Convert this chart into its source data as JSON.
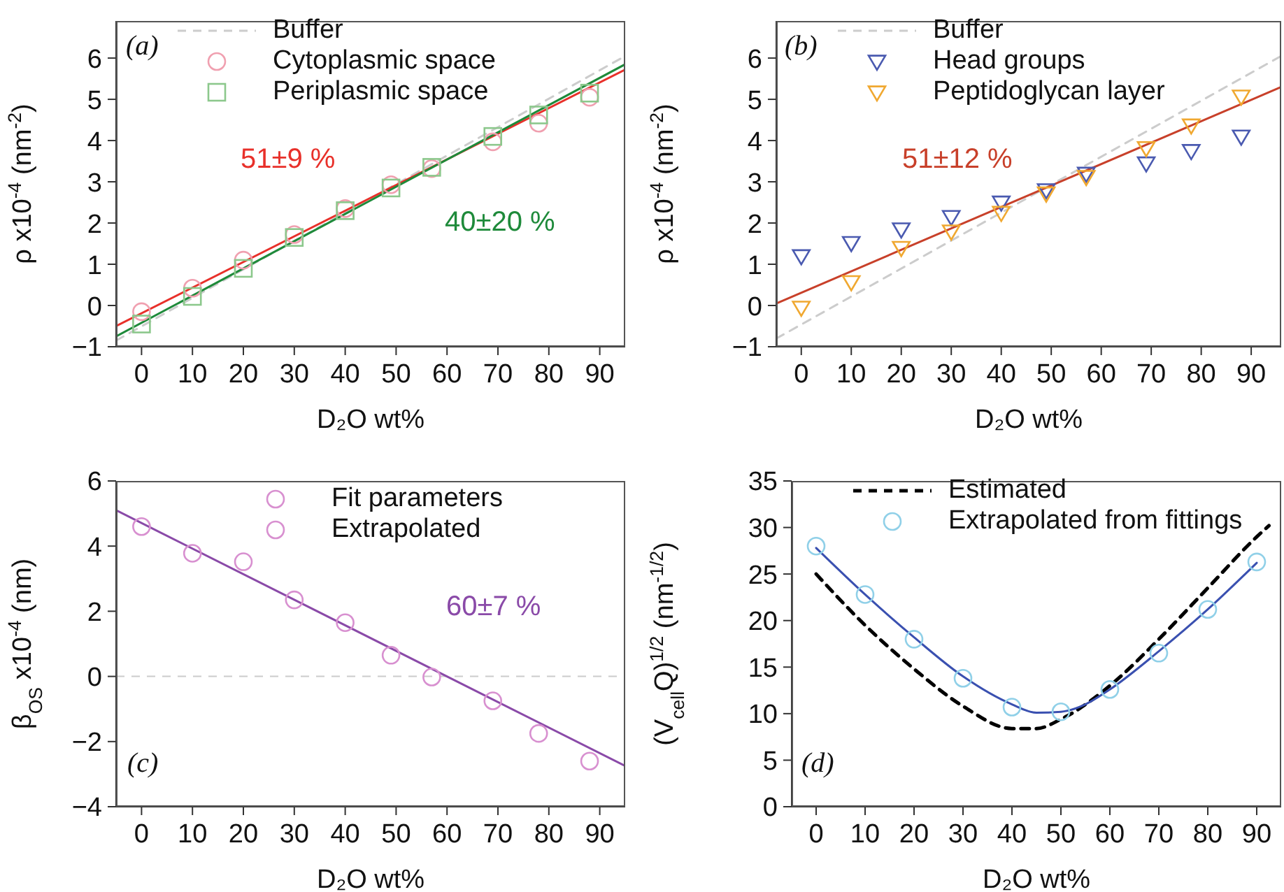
{
  "chart_data": [
    {
      "type": "scatter",
      "xlabel": "D₂O wt%",
      "ylabel": "ρ x10$^{-4}$ (nm$^{-2}$)",
      "xlim": [
        -5,
        95
      ],
      "ylim": [
        -1,
        6.9
      ],
      "xticks": [
        0,
        10,
        20,
        30,
        40,
        50,
        60,
        70,
        80,
        90
      ],
      "yticks": [
        -1,
        0,
        1,
        2,
        3,
        4,
        5,
        6
      ],
      "legend": "top left",
      "annotations": [
        "(a)",
        "51±9 %",
        "40±20 %"
      ],
      "series": [
        {
          "name": "Buffer",
          "type": "line",
          "line_style": "dashed",
          "marker": "none",
          "color": "#cccccc",
          "x": [
            -5,
            95
          ],
          "values": [
            -0.85,
            6.05
          ]
        },
        {
          "name": "Cytoplasmic space",
          "marker": "circle",
          "color": "#f0a0b0",
          "x": [
            0,
            10,
            20,
            30,
            40,
            49,
            57,
            69,
            78,
            88
          ],
          "values": [
            -0.15,
            0.42,
            1.1,
            1.72,
            2.35,
            2.93,
            3.32,
            3.97,
            4.42,
            5.05
          ]
        },
        {
          "name": "Periplasmic space",
          "marker": "square",
          "color": "#8cc88c",
          "x": [
            0,
            10,
            20,
            30,
            40,
            49,
            57,
            69,
            78,
            88
          ],
          "values": [
            -0.45,
            0.22,
            0.9,
            1.65,
            2.3,
            2.85,
            3.35,
            4.1,
            4.62,
            5.15
          ]
        },
        {
          "type": "line",
          "line_style": "solid",
          "marker": "none",
          "color": "#e8302a",
          "x": [
            -5,
            95
          ],
          "values": [
            -0.5,
            5.72
          ]
        },
        {
          "type": "line",
          "line_style": "solid",
          "marker": "none",
          "color": "#1e8a3a",
          "x": [
            -5,
            95
          ],
          "values": [
            -0.75,
            5.85
          ]
        }
      ]
    },
    {
      "type": "scatter",
      "xlabel": "D₂O wt%",
      "ylabel": "ρ x10$^{-4}$ (nm$^{-2}$)",
      "xlim": [
        -5,
        96
      ],
      "ylim": [
        -1,
        6.9
      ],
      "xticks": [
        0,
        10,
        20,
        30,
        40,
        50,
        60,
        70,
        80,
        90
      ],
      "yticks": [
        -1,
        0,
        1,
        2,
        3,
        4,
        5,
        6
      ],
      "legend": "top left",
      "annotations": [
        "(b)",
        "51±12 %"
      ],
      "series": [
        {
          "name": "Buffer",
          "type": "line",
          "line_style": "dashed",
          "marker": "none",
          "color": "#cccccc",
          "x": [
            -5,
            96
          ],
          "values": [
            -0.8,
            6.05
          ]
        },
        {
          "name": "Head groups",
          "marker": "triangle",
          "color": "#4a5ab0",
          "x": [
            0,
            10,
            20,
            30,
            40,
            49,
            57,
            69,
            78,
            88
          ],
          "values": [
            1.2,
            1.52,
            1.85,
            2.15,
            2.5,
            2.8,
            3.2,
            3.45,
            3.75,
            4.1
          ]
        },
        {
          "name": "Peptidoglycan layer",
          "marker": "triangle",
          "color": "#f0a830",
          "x": [
            0,
            10,
            20,
            30,
            40,
            49,
            57,
            69,
            78,
            88
          ],
          "values": [
            -0.05,
            0.57,
            1.4,
            1.8,
            2.25,
            2.72,
            3.12,
            3.82,
            4.37,
            5.07
          ]
        },
        {
          "type": "line",
          "line_style": "solid",
          "marker": "none",
          "color": "#c8402a",
          "x": [
            -5,
            96
          ],
          "values": [
            0.05,
            5.3
          ]
        }
      ]
    },
    {
      "type": "scatter",
      "xlabel": "D₂O wt%",
      "ylabel": "β$_{OS}$ x10$^{-4}$ (nm)",
      "xlim": [
        -5,
        95
      ],
      "ylim": [
        -4,
        6
      ],
      "xticks": [
        0,
        10,
        20,
        30,
        40,
        50,
        60,
        70,
        80,
        90
      ],
      "yticks": [
        -4,
        -2,
        0,
        2,
        4,
        6
      ],
      "legend": "top right",
      "annotations": [
        "(c)",
        "60±7 %"
      ],
      "ref_lines": [
        {
          "axis": "y",
          "value": 0,
          "color": "#cccccc",
          "line_style": "dashed"
        }
      ],
      "series": [
        {
          "name": "Fit parameters",
          "marker": "circle",
          "color": "#d890d0",
          "x": [
            0,
            10,
            20,
            30,
            40,
            49
          ],
          "values": [
            4.6,
            3.78,
            3.52,
            2.35,
            1.65,
            0.65
          ]
        },
        {
          "name": "Extrapolated",
          "marker": "circle",
          "color": "#d890d0",
          "x": [
            57,
            69,
            78,
            88
          ],
          "values": [
            -0.02,
            -0.75,
            -1.75,
            -2.6
          ]
        },
        {
          "type": "line",
          "line_style": "solid",
          "marker": "none",
          "color": "#8a4aa8",
          "x": [
            -5,
            95
          ],
          "values": [
            5.1,
            -2.75
          ]
        }
      ]
    },
    {
      "type": "line",
      "xlabel": "D₂O wt%",
      "ylabel": "(V$_{cell}$Q)$^{1/2}$ (nm$^{-1/2}$)",
      "xlim": [
        -5,
        95
      ],
      "ylim": [
        0,
        35
      ],
      "xticks": [
        0,
        10,
        20,
        30,
        40,
        50,
        60,
        70,
        80,
        90
      ],
      "yticks": [
        0,
        5,
        10,
        15,
        20,
        25,
        30,
        35
      ],
      "legend": "top left",
      "annotations": [
        "(d)"
      ],
      "series": [
        {
          "name": "Estimated",
          "line_style": "dashed",
          "marker": "none",
          "color": "#000000",
          "x": [
            0,
            10,
            20,
            30,
            40,
            45,
            50,
            60,
            70,
            80,
            90,
            92.5
          ],
          "values": [
            25,
            19.5,
            14.8,
            10.8,
            8.4,
            8.4,
            9.4,
            13,
            18,
            23.5,
            29,
            30.2
          ]
        },
        {
          "name": "Extrapolated from fittings",
          "type": "scatter",
          "marker": "circle",
          "color": "#90d0e8",
          "x": [
            0,
            10,
            20,
            30,
            40,
            50,
            60,
            70,
            80,
            90
          ],
          "values": [
            28,
            22.8,
            18,
            13.8,
            10.7,
            10.2,
            12.6,
            16.5,
            21.2,
            26.3
          ]
        },
        {
          "line_style": "solid",
          "marker": "none",
          "color": "#3a50b0",
          "x": [
            0,
            10,
            20,
            30,
            40,
            45,
            50,
            55,
            60,
            70,
            80,
            90
          ],
          "values": [
            27.8,
            22.8,
            18.2,
            14,
            11,
            10.1,
            10.2,
            11,
            12.6,
            16.7,
            21.2,
            26.2
          ]
        }
      ]
    }
  ]
}
